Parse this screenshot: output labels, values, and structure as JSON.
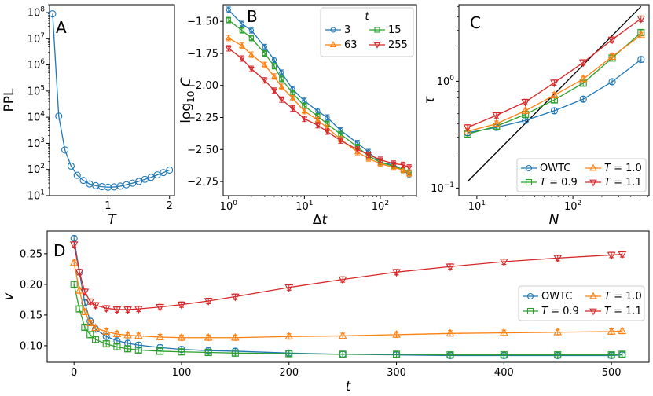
{
  "chart_data": [
    {
      "panel": "A",
      "type": "line",
      "title": "",
      "xlabel": "T",
      "ylabel": "PPL",
      "yscale": "log",
      "xlim": [
        0.05,
        2.08
      ],
      "ylim": [
        10,
        200000000
      ],
      "xticks": [
        "1",
        "2"
      ],
      "xtick_values": [
        1,
        2
      ],
      "yticks": [
        "10^1",
        "10^2",
        "10^3",
        "10^4",
        "10^5",
        "10^6",
        "10^7",
        "10^8"
      ],
      "color": "#1f77b4",
      "series": [
        {
          "name": "PPL",
          "x": [
            0.1,
            0.2,
            0.3,
            0.4,
            0.5,
            0.6,
            0.7,
            0.8,
            0.9,
            1.0,
            1.1,
            1.2,
            1.3,
            1.4,
            1.5,
            1.6,
            1.7,
            1.8,
            1.9,
            2.0
          ],
          "y": [
            90000000,
            11000,
            560,
            135,
            60,
            38,
            28,
            24,
            22,
            21,
            21.5,
            23,
            26,
            30,
            35,
            42,
            50,
            62,
            76,
            95
          ]
        }
      ]
    },
    {
      "panel": "B",
      "type": "line",
      "title": "",
      "xlabel": "Δt",
      "ylabel": "log10 C",
      "xscale": "log",
      "xlim": [
        0.85,
        300
      ],
      "ylim": [
        -2.86,
        -1.37
      ],
      "xticks": [
        "10^0",
        "10^1",
        "10^2"
      ],
      "yticks": [
        "-1.50",
        "-1.75",
        "-2.00",
        "-2.25",
        "-2.50",
        "-2.75"
      ],
      "ytick_values": [
        -1.5,
        -1.75,
        -2.0,
        -2.25,
        -2.5,
        -2.75
      ],
      "legend_title": "t",
      "legend_placement": "top-right",
      "series": [
        {
          "name": "3",
          "color": "#1f77b4",
          "marker": "circle",
          "x": [
            1,
            1.5,
            2,
            3,
            4,
            5,
            7,
            10,
            15,
            20,
            30,
            50,
            70,
            100,
            150,
            200,
            240
          ],
          "y": [
            -1.41,
            -1.52,
            -1.57,
            -1.7,
            -1.8,
            -1.9,
            -2.03,
            -2.12,
            -2.2,
            -2.25,
            -2.35,
            -2.45,
            -2.52,
            -2.6,
            -2.62,
            -2.66,
            -2.7
          ]
        },
        {
          "name": "15",
          "color": "#2ca02c",
          "marker": "square",
          "x": [
            1,
            1.5,
            2,
            3,
            4,
            5,
            7,
            10,
            15,
            20,
            30,
            50,
            70,
            100,
            150,
            200,
            240
          ],
          "y": [
            -1.49,
            -1.57,
            -1.63,
            -1.75,
            -1.85,
            -1.95,
            -2.06,
            -2.16,
            -2.24,
            -2.3,
            -2.38,
            -2.48,
            -2.55,
            -2.6,
            -2.63,
            -2.66,
            -2.68
          ]
        },
        {
          "name": "63",
          "color": "#ff7f0e",
          "marker": "triangle",
          "x": [
            1,
            1.5,
            2,
            3,
            4,
            5,
            7,
            10,
            15,
            20,
            30,
            50,
            70,
            100,
            150,
            200,
            240
          ],
          "y": [
            -1.63,
            -1.69,
            -1.76,
            -1.84,
            -1.93,
            -2.01,
            -2.1,
            -2.2,
            -2.27,
            -2.33,
            -2.42,
            -2.52,
            -2.57,
            -2.61,
            -2.64,
            -2.66,
            -2.69
          ]
        },
        {
          "name": "255",
          "color": "#d62728",
          "marker": "triangle-down",
          "x": [
            1,
            1.5,
            2,
            3,
            4,
            5,
            7,
            10,
            15,
            20,
            30,
            50,
            70,
            100,
            150,
            200,
            240
          ],
          "y": [
            -1.71,
            -1.79,
            -1.87,
            -1.96,
            -2.04,
            -2.11,
            -2.18,
            -2.26,
            -2.31,
            -2.36,
            -2.43,
            -2.5,
            -2.54,
            -2.58,
            -2.61,
            -2.62,
            -2.64
          ]
        }
      ]
    },
    {
      "panel": "C",
      "type": "line",
      "title": "",
      "xlabel": "N",
      "ylabel": "τ",
      "xscale": "log",
      "yscale": "log",
      "xlim": [
        6.5,
        620
      ],
      "ylim": [
        0.085,
        5.2
      ],
      "xticks": [
        "10^1",
        "10^2"
      ],
      "yticks": [
        "10^-1",
        "10^0"
      ],
      "legend_placement": "lower-right",
      "reference_line": {
        "x": [
          8,
          512
        ],
        "y": [
          0.115,
          5.0
        ],
        "color": "#000000"
      },
      "series": [
        {
          "name": "OWTC",
          "color": "#1f77b4",
          "marker": "circle",
          "x": [
            8,
            16,
            32,
            64,
            128,
            256,
            512
          ],
          "y": [
            0.33,
            0.37,
            0.43,
            0.53,
            0.68,
            0.99,
            1.6
          ]
        },
        {
          "name": "T = 0.9",
          "color": "#2ca02c",
          "marker": "square",
          "x": [
            8,
            16,
            32,
            64,
            128,
            256,
            512
          ],
          "y": [
            0.32,
            0.38,
            0.49,
            0.67,
            0.96,
            1.65,
            2.85
          ]
        },
        {
          "name": "T = 1.0",
          "color": "#ff7f0e",
          "marker": "triangle",
          "x": [
            8,
            16,
            32,
            64,
            128,
            256,
            512
          ],
          "y": [
            0.34,
            0.4,
            0.53,
            0.74,
            1.05,
            1.7,
            2.7
          ]
        },
        {
          "name": "T = 1.1",
          "color": "#d62728",
          "marker": "triangle-down",
          "x": [
            8,
            16,
            32,
            64,
            128,
            256,
            512
          ],
          "y": [
            0.37,
            0.48,
            0.64,
            0.97,
            1.5,
            2.45,
            3.85
          ]
        }
      ]
    },
    {
      "panel": "D",
      "type": "line",
      "title": "",
      "xlabel": "t",
      "ylabel": "v",
      "xlim": [
        -25,
        535
      ],
      "ylim": [
        0.073,
        0.287
      ],
      "xticks": [
        "0",
        "100",
        "200",
        "300",
        "400",
        "500"
      ],
      "xtick_values": [
        0,
        100,
        200,
        300,
        400,
        500
      ],
      "yticks": [
        "0.10",
        "0.15",
        "0.20",
        "0.25"
      ],
      "ytick_values": [
        0.1,
        0.15,
        0.2,
        0.25
      ],
      "legend_placement": "center-right",
      "series": [
        {
          "name": "OWTC",
          "color": "#1f77b4",
          "marker": "circle",
          "x": [
            0,
            5,
            10,
            15,
            20,
            30,
            40,
            50,
            60,
            80,
            100,
            125,
            150,
            200,
            250,
            300,
            350,
            400,
            450,
            500,
            510
          ],
          "y": [
            0.275,
            0.22,
            0.17,
            0.14,
            0.127,
            0.115,
            0.108,
            0.104,
            0.101,
            0.097,
            0.094,
            0.092,
            0.091,
            0.088,
            0.086,
            0.085,
            0.084,
            0.084,
            0.084,
            0.084,
            0.085
          ]
        },
        {
          "name": "T = 0.9",
          "color": "#2ca02c",
          "marker": "square",
          "x": [
            0,
            5,
            10,
            15,
            20,
            30,
            40,
            50,
            60,
            80,
            100,
            125,
            150,
            200,
            250,
            300,
            350,
            400,
            450,
            500,
            510
          ],
          "y": [
            0.2,
            0.16,
            0.13,
            0.118,
            0.11,
            0.103,
            0.098,
            0.095,
            0.093,
            0.091,
            0.09,
            0.089,
            0.088,
            0.087,
            0.086,
            0.086,
            0.085,
            0.085,
            0.085,
            0.085,
            0.086
          ]
        },
        {
          "name": "T = 1.0",
          "color": "#ff7f0e",
          "marker": "triangle",
          "x": [
            0,
            5,
            10,
            15,
            20,
            30,
            40,
            50,
            60,
            80,
            100,
            125,
            150,
            200,
            250,
            300,
            350,
            400,
            450,
            500,
            510
          ],
          "y": [
            0.235,
            0.19,
            0.155,
            0.137,
            0.129,
            0.123,
            0.119,
            0.117,
            0.116,
            0.114,
            0.113,
            0.113,
            0.113,
            0.115,
            0.116,
            0.118,
            0.12,
            0.121,
            0.122,
            0.123,
            0.124
          ]
        },
        {
          "name": "T = 1.1",
          "color": "#d62728",
          "marker": "triangle-down",
          "x": [
            0,
            5,
            10,
            15,
            20,
            30,
            40,
            50,
            60,
            80,
            100,
            125,
            150,
            200,
            250,
            300,
            350,
            400,
            450,
            500,
            510
          ],
          "y": [
            0.265,
            0.22,
            0.188,
            0.172,
            0.166,
            0.161,
            0.159,
            0.159,
            0.16,
            0.163,
            0.167,
            0.173,
            0.18,
            0.195,
            0.208,
            0.22,
            0.229,
            0.237,
            0.243,
            0.248,
            0.249
          ]
        }
      ]
    }
  ]
}
